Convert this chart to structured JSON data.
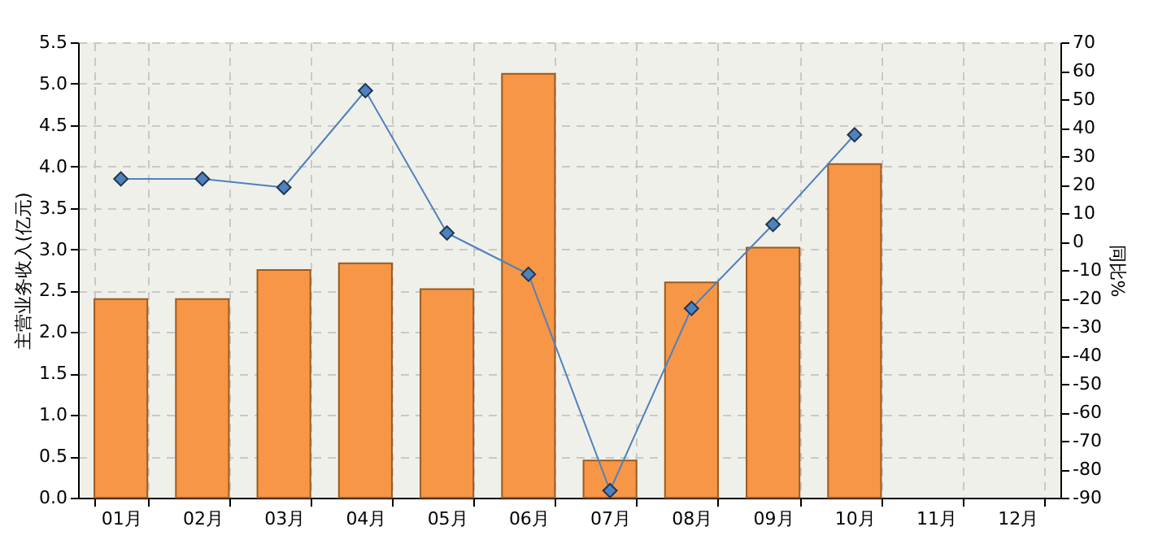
{
  "chart_data": {
    "type": "bar",
    "ylabel": "主营业务收入(亿元)",
    "y2label": "同比%",
    "categories": [
      "01月",
      "02月",
      "03月",
      "04月",
      "05月",
      "06月",
      "07月",
      "08月",
      "09月",
      "10月",
      "11月",
      "12月"
    ],
    "series": [
      {
        "color": "#f79646",
        "values": [
          2.4,
          2.4,
          2.75,
          2.83,
          2.52,
          5.12,
          0.45,
          2.6,
          3.02,
          4.03,
          null,
          null
        ]
      },
      {
        "type": "line",
        "axis": "y2",
        "color": "#4f81bd",
        "values": [
          22,
          22,
          19,
          53,
          3,
          -11.5,
          -87.5,
          -23.5,
          6,
          37.5,
          null,
          null
        ]
      }
    ],
    "ylim": [
      0,
      5.5
    ],
    "yticks": [
      {
        "value": 0,
        "label": "0.0"
      },
      0.5,
      {
        "value": 1,
        "label": "1.0"
      },
      1.5,
      {
        "value": 2,
        "label": "2.0"
      },
      2.5,
      {
        "value": 3,
        "label": "3.0"
      },
      3.5,
      {
        "value": 4,
        "label": "4.0"
      },
      4.5,
      {
        "value": 5,
        "label": "5.0"
      },
      5.5
    ],
    "y2lim": [
      -90,
      70
    ],
    "y2ticks": [
      -90,
      -80,
      -70,
      -60,
      -50,
      -40,
      -30,
      -20,
      -10,
      0,
      10,
      20,
      30,
      40,
      50,
      60,
      70
    ],
    "grid": true,
    "marker": "diamond",
    "line_style": "solid"
  }
}
